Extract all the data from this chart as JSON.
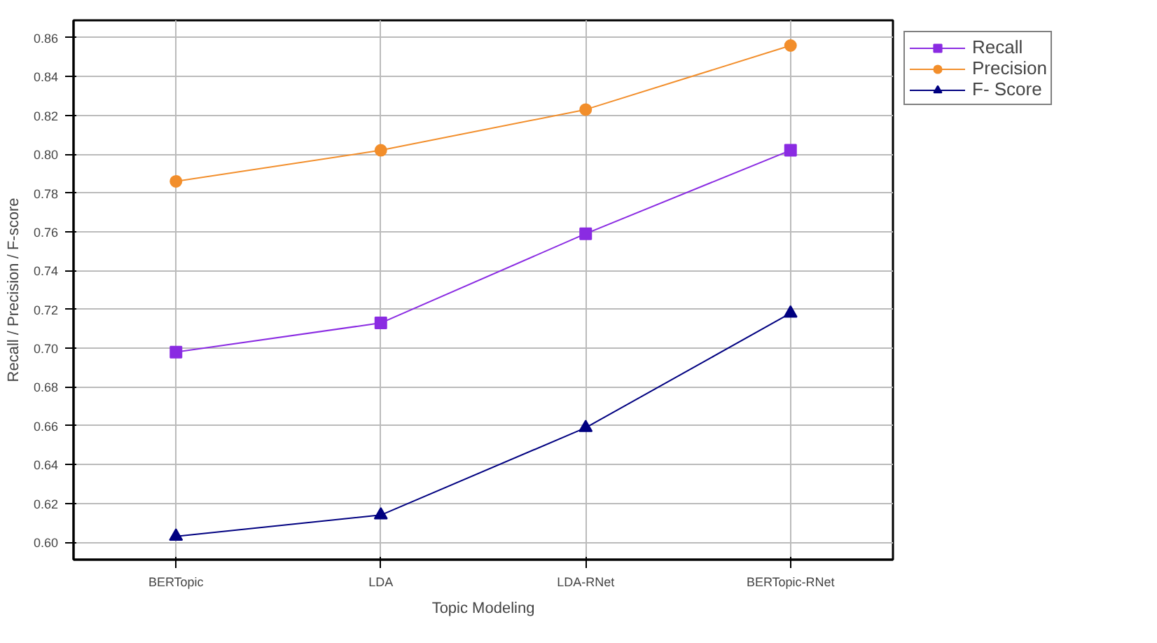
{
  "chart_data": {
    "type": "line",
    "xlabel": "Topic Modeling",
    "ylabel": "Recall / Precision / F-score",
    "categories": [
      "BERTopic",
      "LDA",
      "LDA-RNet",
      "BERTopic-RNet"
    ],
    "series": [
      {
        "name": "Recall",
        "color": "#8a2be2",
        "marker": "square",
        "values": [
          0.698,
          0.713,
          0.759,
          0.802
        ]
      },
      {
        "name": "Precision",
        "color": "#f28e2b",
        "marker": "circle",
        "values": [
          0.786,
          0.802,
          0.823,
          0.856
        ]
      },
      {
        "name": "F- Score",
        "color": "#000080",
        "marker": "triangle",
        "values": [
          0.603,
          0.614,
          0.659,
          0.718
        ]
      }
    ],
    "ylim": [
      0.591,
      0.869
    ],
    "yticks": [
      {
        "value": 0.6,
        "label": "0.60"
      },
      {
        "value": 0.62,
        "label": "0.62"
      },
      {
        "value": 0.64,
        "label": "0.64"
      },
      {
        "value": 0.66,
        "label": "0.66"
      },
      {
        "value": 0.68,
        "label": "0.68"
      },
      {
        "value": 0.7,
        "label": "0.70"
      },
      {
        "value": 0.72,
        "label": "0.72"
      },
      {
        "value": 0.74,
        "label": "0.74"
      },
      {
        "value": 0.76,
        "label": "0.76"
      },
      {
        "value": 0.78,
        "label": "0.78"
      },
      {
        "value": 0.8,
        "label": "0.80"
      },
      {
        "value": 0.82,
        "label": "0.82"
      },
      {
        "value": 0.84,
        "label": "0.84"
      },
      {
        "value": 0.86,
        "label": "0.86"
      }
    ],
    "grid": true,
    "legend": "top right",
    "line_style": "solid"
  }
}
